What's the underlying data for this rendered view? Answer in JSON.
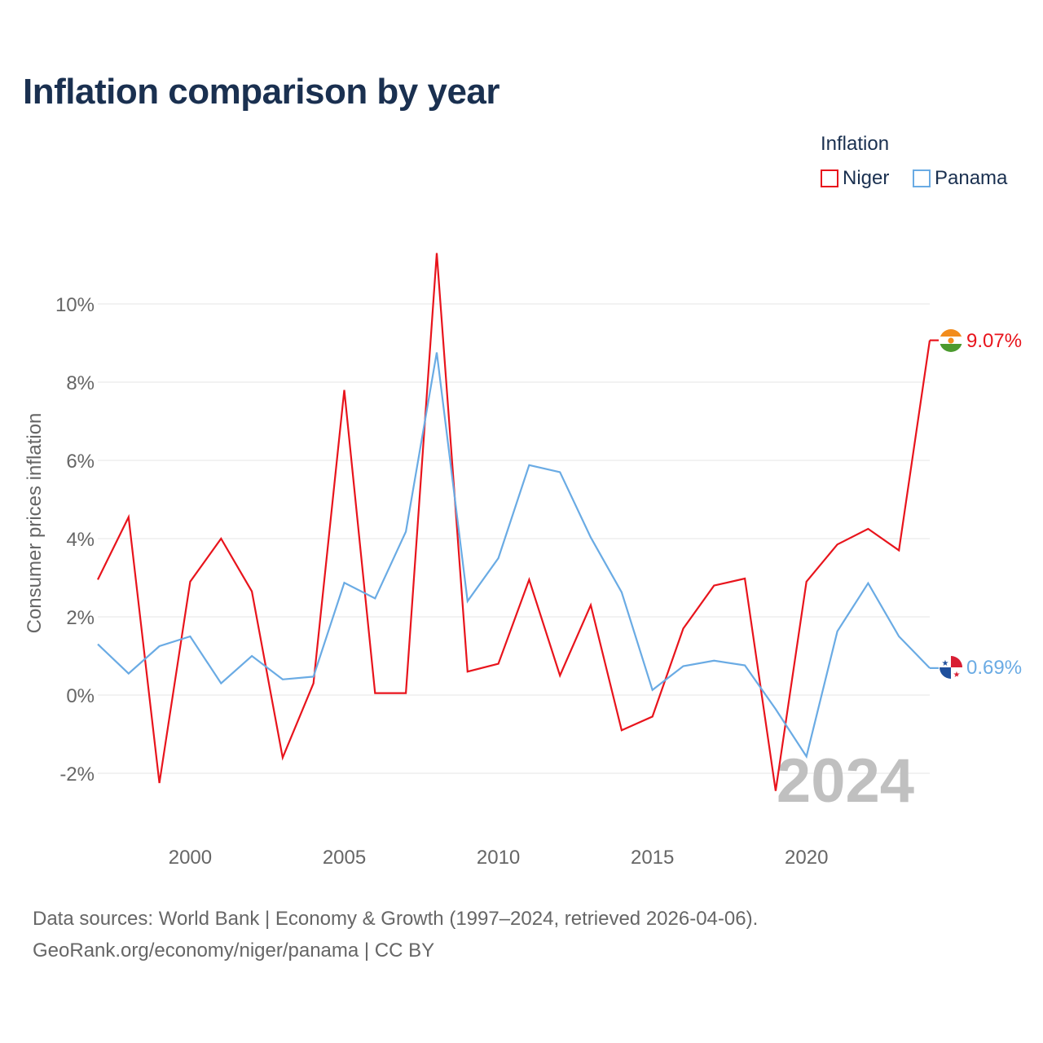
{
  "title": "Inflation comparison by year",
  "legend": {
    "title": "Inflation",
    "items": [
      {
        "name": "Niger",
        "color": "#e8141c"
      },
      {
        "name": "Panama",
        "color": "#6aabe4"
      }
    ]
  },
  "year_label": "2024",
  "source": {
    "line1": "Data sources: World Bank | Economy & Growth (1997–2024, retrieved 2026-04-06).",
    "line2": "GeoRank.org/economy/niger/panama | CC BY"
  },
  "chart_data": {
    "type": "line",
    "title": "Inflation comparison by year",
    "xlabel": "",
    "ylabel": "Consumer prices inflation",
    "xlim": [
      1997,
      2024
    ],
    "ylim": [
      -2.5,
      11.3
    ],
    "x_ticks": [
      2000,
      2005,
      2010,
      2015,
      2020
    ],
    "y_ticks": [
      -2,
      0,
      2,
      4,
      6,
      8,
      10
    ],
    "y_tick_labels": [
      "-2%",
      "0%",
      "2%",
      "4%",
      "6%",
      "8%",
      "10%"
    ],
    "x": [
      1997,
      1998,
      1999,
      2000,
      2001,
      2002,
      2003,
      2004,
      2005,
      2006,
      2007,
      2008,
      2009,
      2010,
      2011,
      2012,
      2013,
      2014,
      2015,
      2016,
      2017,
      2018,
      2019,
      2020,
      2021,
      2022,
      2023,
      2024
    ],
    "series": [
      {
        "name": "Niger",
        "color": "#e8141c",
        "end_label": "9.07%",
        "values": [
          2.95,
          4.55,
          -2.25,
          2.9,
          4.0,
          2.65,
          -1.6,
          0.3,
          7.8,
          0.05,
          0.05,
          11.3,
          0.6,
          0.8,
          2.95,
          0.5,
          2.3,
          -0.9,
          -0.55,
          1.7,
          2.8,
          2.98,
          -2.45,
          2.9,
          3.85,
          4.25,
          3.7,
          9.07
        ]
      },
      {
        "name": "Panama",
        "color": "#6aabe4",
        "end_label": "0.69%",
        "values": [
          1.3,
          0.55,
          1.25,
          1.5,
          0.3,
          1.0,
          0.4,
          0.47,
          2.87,
          2.47,
          4.18,
          8.76,
          2.4,
          3.5,
          5.88,
          5.7,
          4.03,
          2.63,
          0.13,
          0.74,
          0.88,
          0.76,
          -0.36,
          -1.57,
          1.63,
          2.86,
          1.5,
          0.69
        ]
      }
    ]
  }
}
